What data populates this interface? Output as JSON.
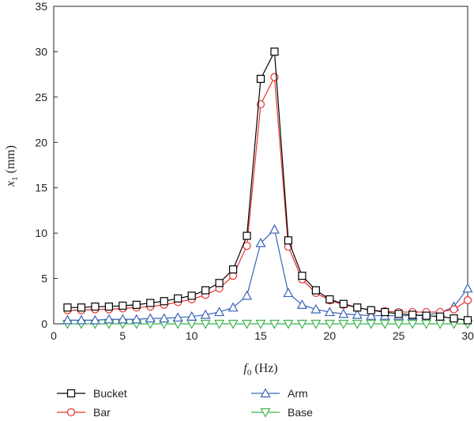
{
  "chart_data": {
    "type": "line",
    "xlabel_var": "f",
    "xlabel_sub": "0",
    "xlabel_unit": " (Hz)",
    "ylabel_var": "x",
    "ylabel_sub": "1",
    "ylabel_unit": " (mm)",
    "xlim": [
      0,
      30
    ],
    "ylim": [
      0,
      35
    ],
    "xticks": [
      0,
      5,
      10,
      15,
      20,
      25,
      30
    ],
    "yticks": [
      0,
      5,
      10,
      15,
      20,
      25,
      30,
      35
    ],
    "grid": false,
    "legend_position": "bottom",
    "x": [
      1,
      2,
      3,
      4,
      5,
      6,
      7,
      8,
      9,
      10,
      11,
      12,
      13,
      14,
      15,
      16,
      17,
      18,
      19,
      20,
      21,
      22,
      23,
      24,
      25,
      26,
      27,
      28,
      29,
      30
    ],
    "series": [
      {
        "name": "Bucket",
        "color": "#000000",
        "marker": "square",
        "values": [
          1.8,
          1.8,
          1.9,
          1.9,
          2.0,
          2.1,
          2.3,
          2.5,
          2.8,
          3.1,
          3.7,
          4.5,
          6.0,
          9.7,
          27.0,
          30.0,
          9.2,
          5.3,
          3.7,
          2.7,
          2.2,
          1.8,
          1.5,
          1.3,
          1.1,
          1.0,
          0.9,
          0.8,
          0.6,
          0.4
        ]
      },
      {
        "name": "Bar",
        "color": "#e8312f",
        "marker": "circle",
        "values": [
          1.5,
          1.5,
          1.6,
          1.6,
          1.7,
          1.8,
          1.9,
          2.1,
          2.4,
          2.7,
          3.2,
          3.9,
          5.3,
          8.6,
          24.2,
          27.2,
          8.5,
          4.9,
          3.4,
          2.6,
          2.1,
          1.8,
          1.5,
          1.4,
          1.3,
          1.3,
          1.3,
          1.3,
          1.6,
          2.6
        ]
      },
      {
        "name": "Arm",
        "color": "#3a63b8",
        "marker": "triangle-up",
        "values": [
          0.4,
          0.4,
          0.4,
          0.5,
          0.5,
          0.5,
          0.6,
          0.6,
          0.7,
          0.8,
          1.0,
          1.3,
          1.8,
          3.1,
          8.9,
          10.4,
          3.4,
          2.1,
          1.6,
          1.3,
          1.1,
          1.0,
          0.9,
          0.9,
          0.9,
          0.9,
          1.0,
          1.2,
          1.9,
          3.9
        ]
      },
      {
        "name": "Base",
        "color": "#3cb54a",
        "marker": "triangle-down",
        "values": [
          0.0,
          0.0,
          0.0,
          0.0,
          0.0,
          0.0,
          0.0,
          0.0,
          0.0,
          0.0,
          0.0,
          0.0,
          0.0,
          0.0,
          0.0,
          0.0,
          0.0,
          0.0,
          0.0,
          0.0,
          0.0,
          0.0,
          0.0,
          0.0,
          0.0,
          0.0,
          0.0,
          0.0,
          0.0,
          0.0
        ]
      }
    ]
  }
}
